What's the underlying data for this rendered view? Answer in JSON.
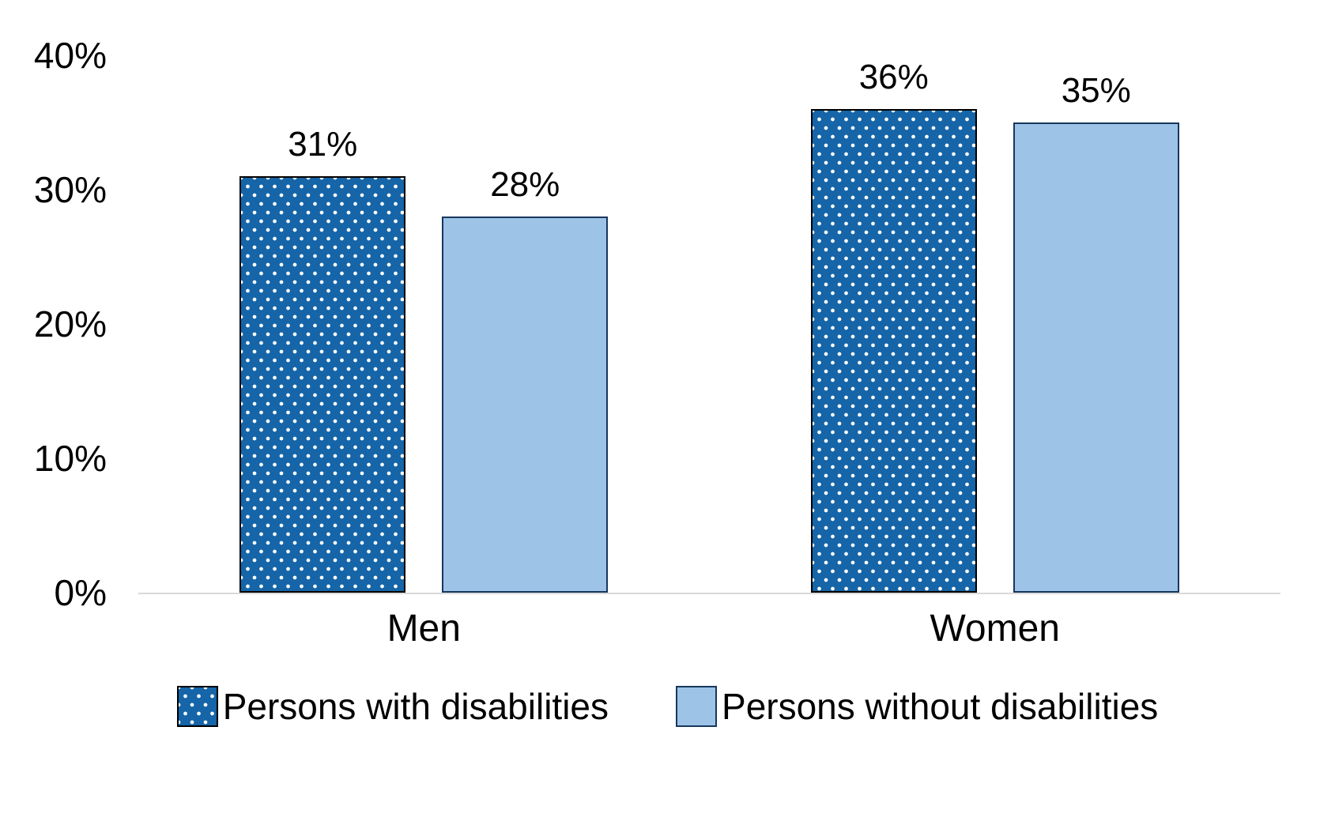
{
  "chart_data": {
    "type": "bar",
    "title": "",
    "xlabel": "",
    "ylabel": "",
    "categories": [
      "Men",
      "Women"
    ],
    "series": [
      {
        "name": "Persons with disabilities",
        "values": [
          31,
          36
        ],
        "style": "pattern-dots",
        "fill_color": "#1565A8",
        "pattern_dot_color": "#FFFFFF",
        "border_color": "#000000"
      },
      {
        "name": "Persons without disabilities",
        "values": [
          28,
          35
        ],
        "style": "solid",
        "fill_color": "#9DC3E6",
        "border_color": "#17375E"
      }
    ],
    "data_labels": [
      "31%",
      "28%",
      "36%",
      "35%"
    ],
    "y_ticks": [
      "0%",
      "10%",
      "20%",
      "30%",
      "40%"
    ],
    "ylim": [
      0,
      40
    ],
    "grid": false,
    "axis_line_color": "#D9D9D9",
    "legend_position": "bottom"
  }
}
